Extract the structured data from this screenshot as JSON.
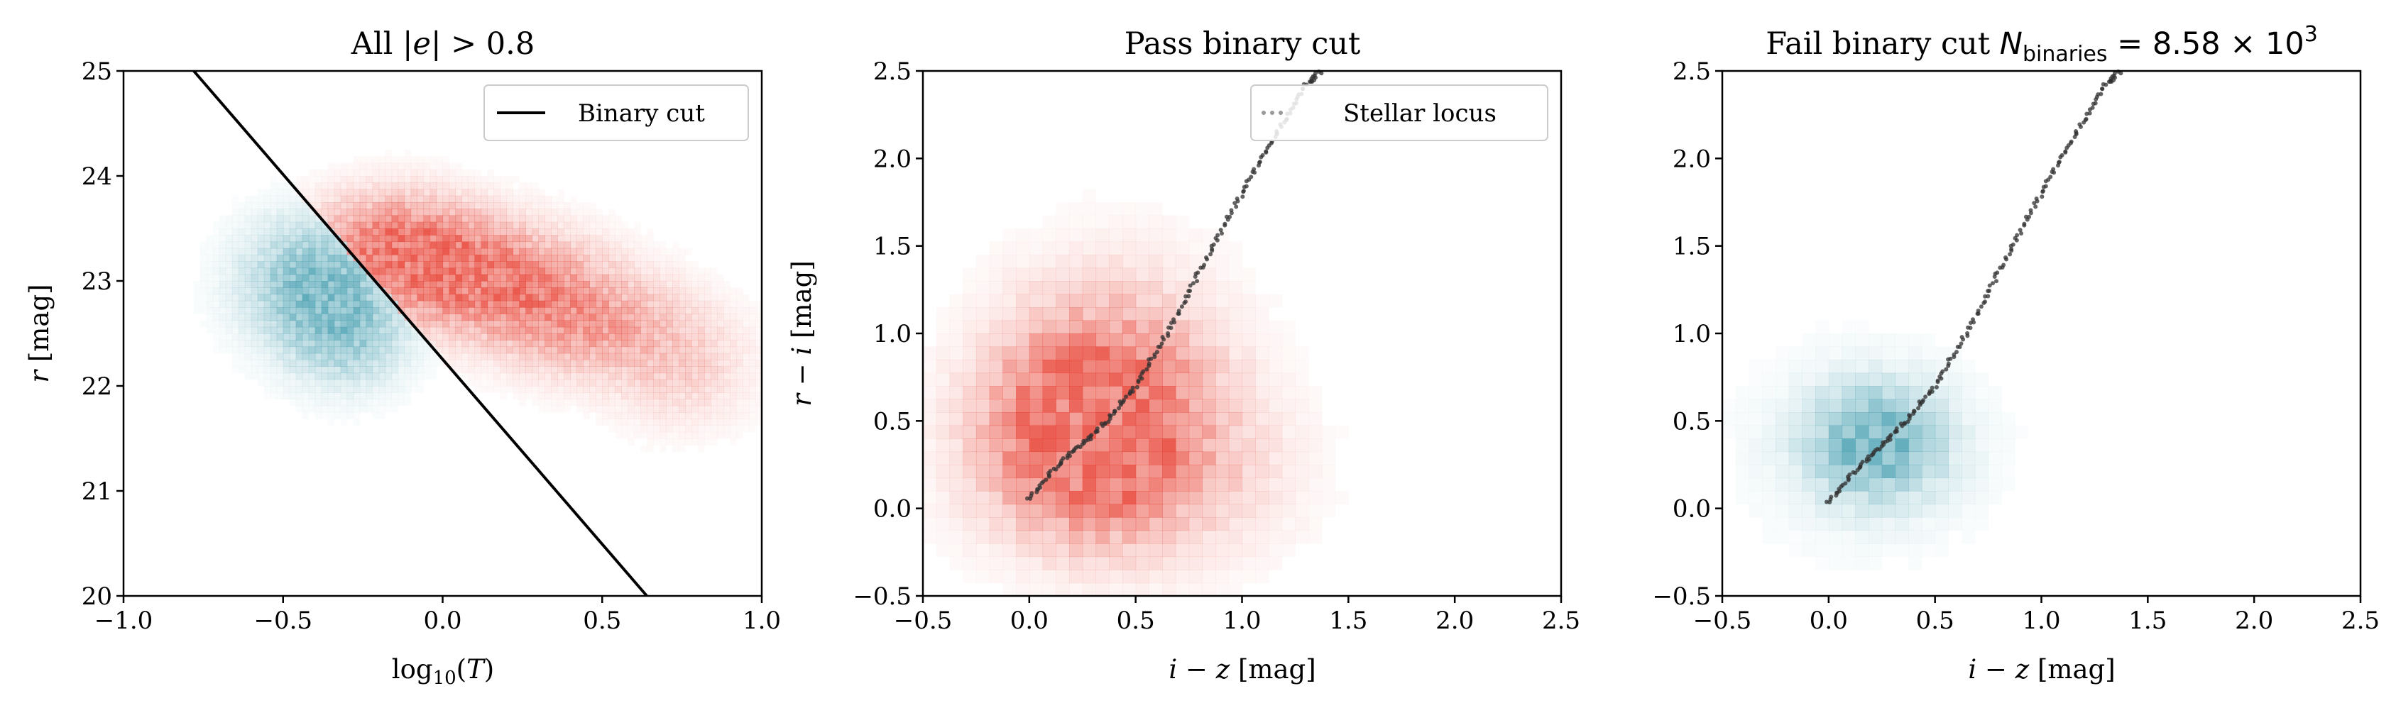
{
  "figure": {
    "colors": {
      "pass": "#e8473a",
      "fail": "#4fa3b4",
      "line": "#000000",
      "locus": "#303030"
    }
  },
  "chart_data": [
    {
      "type": "heatmap",
      "title": "All |e| > 0.8",
      "xlabel": "log10(T)",
      "ylabel": "r [mag]",
      "xlim": [
        -1.0,
        1.0
      ],
      "ylim": [
        20,
        25
      ],
      "xticks": [
        "−1.0",
        "−0.5",
        "0.0",
        "0.5",
        "1.0"
      ],
      "yticks": [
        "20",
        "21",
        "22",
        "23",
        "24",
        "25"
      ],
      "legend": {
        "position": "top-right",
        "entries": [
          "Binary cut"
        ]
      },
      "grid": false,
      "series": [
        {
          "name": "Binary cut",
          "kind": "line",
          "x": [
            -0.78,
            0.64
          ],
          "y": [
            25.0,
            20.0
          ]
        }
      ],
      "density": [
        {
          "population": "pass",
          "color": "#e8473a",
          "blobs": [
            {
              "x": -0.15,
              "y": 23.3,
              "sx": 0.18,
              "sy": 0.35,
              "w": 1.0
            },
            {
              "x": 0.15,
              "y": 23.0,
              "sx": 0.2,
              "sy": 0.35,
              "w": 0.9
            },
            {
              "x": 0.45,
              "y": 22.6,
              "sx": 0.18,
              "sy": 0.35,
              "w": 0.6
            },
            {
              "x": 0.75,
              "y": 22.2,
              "sx": 0.15,
              "sy": 0.4,
              "w": 0.3
            }
          ]
        },
        {
          "population": "fail",
          "color": "#4fa3b4",
          "blobs": [
            {
              "x": -0.4,
              "y": 23.0,
              "sx": 0.15,
              "sy": 0.4,
              "w": 0.9
            },
            {
              "x": -0.3,
              "y": 22.5,
              "sx": 0.13,
              "sy": 0.35,
              "w": 0.6
            }
          ]
        }
      ]
    },
    {
      "type": "heatmap",
      "title": "Pass binary cut",
      "xlabel": "i − z [mag]",
      "ylabel": "r − i [mag]",
      "xlim": [
        -0.5,
        2.5
      ],
      "ylim": [
        -0.5,
        2.5
      ],
      "xticks": [
        "−0.5",
        "0.0",
        "0.5",
        "1.0",
        "1.5",
        "2.0",
        "2.5"
      ],
      "yticks": [
        "−0.5",
        "0.0",
        "0.5",
        "1.0",
        "1.5",
        "2.0",
        "2.5"
      ],
      "legend": {
        "position": "top-right",
        "entries": [
          "Stellar locus"
        ]
      },
      "grid": false,
      "series": [
        {
          "name": "Stellar locus",
          "kind": "locus",
          "x": [
            0.0,
            0.1,
            0.2,
            0.3,
            0.4,
            0.5,
            0.6,
            0.7,
            0.8,
            0.9,
            1.0,
            1.1,
            1.2,
            1.3,
            1.37
          ],
          "y": [
            0.05,
            0.2,
            0.32,
            0.42,
            0.55,
            0.7,
            0.9,
            1.12,
            1.35,
            1.58,
            1.8,
            2.02,
            2.22,
            2.42,
            2.5
          ]
        }
      ],
      "density": [
        {
          "population": "pass",
          "color": "#e8473a",
          "blobs": [
            {
              "x": 0.25,
              "y": 0.45,
              "sx": 0.3,
              "sy": 0.35,
              "w": 1.0
            },
            {
              "x": 0.4,
              "y": 0.7,
              "sx": 0.35,
              "sy": 0.45,
              "w": 0.6
            },
            {
              "x": 0.5,
              "y": 0.2,
              "sx": 0.45,
              "sy": 0.35,
              "w": 0.4
            }
          ]
        }
      ]
    },
    {
      "type": "heatmap",
      "title": "Fail binary cut N_binaries = 8.58 × 10^3",
      "xlabel": "i − z [mag]",
      "ylabel": "",
      "xlim": [
        -0.5,
        2.5
      ],
      "ylim": [
        -0.5,
        2.5
      ],
      "xticks": [
        "−0.5",
        "0.0",
        "0.5",
        "1.0",
        "1.5",
        "2.0",
        "2.5"
      ],
      "yticks": [
        "−0.5",
        "0.0",
        "0.5",
        "1.0",
        "1.5",
        "2.0",
        "2.5"
      ],
      "grid": false,
      "series": [
        {
          "name": "",
          "kind": "locus",
          "x": [
            0.0,
            0.1,
            0.2,
            0.3,
            0.4,
            0.5,
            0.6,
            0.7,
            0.8,
            0.9,
            1.0,
            1.1,
            1.2,
            1.3,
            1.37
          ],
          "y": [
            0.03,
            0.18,
            0.3,
            0.42,
            0.55,
            0.7,
            0.9,
            1.12,
            1.35,
            1.58,
            1.8,
            2.02,
            2.22,
            2.42,
            2.5
          ]
        }
      ],
      "density": [
        {
          "population": "fail",
          "color": "#4fa3b4",
          "blobs": [
            {
              "x": 0.22,
              "y": 0.38,
              "sx": 0.2,
              "sy": 0.2,
              "w": 1.0
            },
            {
              "x": 0.2,
              "y": 0.35,
              "sx": 0.35,
              "sy": 0.35,
              "w": 0.25
            }
          ]
        }
      ]
    }
  ]
}
